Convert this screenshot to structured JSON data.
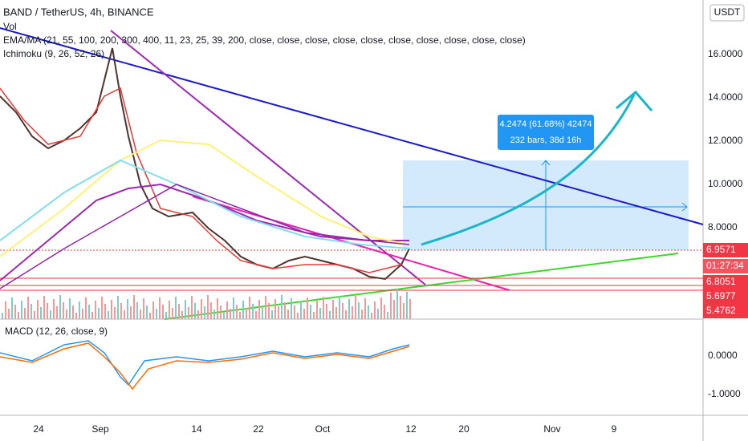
{
  "header": {
    "title": "BAND / TetherUS, 4h, BINANCE",
    "indicators": [
      "Vol",
      "EMA/MA (21, 55, 100, 200, 300, 400, 11, 23, 25, 39, 200, close, close, close, close, close, close, close, close, close, close)",
      "Ichimoku (9, 26, 52, 26)"
    ]
  },
  "currency": "USDT",
  "price_axis": [
    "16.0000",
    "14.0000",
    "12.0000",
    "10.0000",
    "8.0000"
  ],
  "price_tags": [
    "6.9571",
    "01:27:34",
    "6.8051",
    "5.6977",
    "5.4762"
  ],
  "measure": {
    "change": "4.2474 (61.68%) 42474",
    "range": "232 bars, 38d 16h"
  },
  "macd": {
    "title": "MACD (12, 26, close, 9)",
    "axis": [
      "0.0000",
      "-1.0000"
    ]
  },
  "time_axis": [
    "24",
    "Sep",
    "14",
    "22",
    "Oct",
    "12",
    "20",
    "Nov",
    "9"
  ]
}
